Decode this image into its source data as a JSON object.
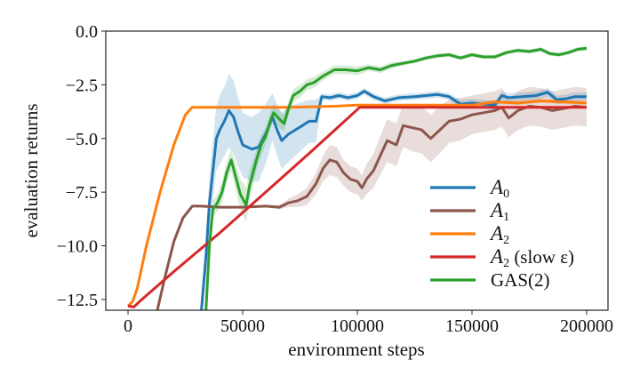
{
  "chart_data": {
    "type": "line",
    "title": "",
    "xlabel": "environment steps",
    "ylabel": "evaluation returns",
    "xlim": [
      -9700,
      209300
    ],
    "ylim": [
      -13.0,
      0.0
    ],
    "xticks": [
      0,
      50000,
      100000,
      150000,
      200000
    ],
    "xtick_labels": [
      "0",
      "50000",
      "100000",
      "150000",
      "200000"
    ],
    "yticks": [
      0.0,
      -2.5,
      -5.0,
      -7.5,
      -10.0,
      -12.5
    ],
    "ytick_labels": [
      "0.0",
      "−2.5",
      "−5.0",
      "−7.5",
      "−10.0",
      "−12.5"
    ],
    "grid": false,
    "legend_position": "lower-right",
    "series": [
      {
        "name": "A_0",
        "color": "#1f77b4",
        "x": [
          32000,
          34000,
          35500,
          37000,
          38500,
          40000,
          42000,
          44000,
          46000,
          48000,
          50000,
          52000,
          54000,
          57000,
          60000,
          63000,
          65000,
          67000,
          70000,
          73000,
          76000,
          79000,
          82000,
          84500,
          88000,
          92000,
          96000,
          100000,
          103000,
          107000,
          112000,
          118000,
          125000,
          130000,
          135000,
          140000,
          145000,
          150000,
          155000,
          160000,
          163000,
          166000,
          172000,
          178000,
          183000,
          187000,
          191000,
          195000,
          200000
        ],
        "y": [
          -13.0,
          -10.5,
          -8.0,
          -6.5,
          -5.0,
          -4.6,
          -4.2,
          -3.7,
          -4.0,
          -4.7,
          -5.3,
          -5.4,
          -5.5,
          -5.4,
          -4.8,
          -4.0,
          -4.6,
          -5.1,
          -4.8,
          -4.6,
          -4.4,
          -4.2,
          -4.2,
          -3.05,
          -3.1,
          -3.0,
          -3.1,
          -3.0,
          -2.8,
          -3.05,
          -3.25,
          -3.1,
          -3.05,
          -3.0,
          -2.95,
          -3.05,
          -3.4,
          -3.35,
          -3.4,
          -3.45,
          -3.0,
          -3.1,
          -3.05,
          -3.0,
          -2.85,
          -3.2,
          -3.15,
          -3.05,
          -3.05
        ],
        "band": [
          0.1,
          0.8,
          1.2,
          1.4,
          1.5,
          1.6,
          1.6,
          1.7,
          1.7,
          1.6,
          1.5,
          1.5,
          1.5,
          1.6,
          1.4,
          1.1,
          1.2,
          1.3,
          1.3,
          1.2,
          1.1,
          1.0,
          1.0,
          0.15,
          0.15,
          0.15,
          0.15,
          0.15,
          0.15,
          0.15,
          0.15,
          0.15,
          0.15,
          0.15,
          0.15,
          0.15,
          0.2,
          0.2,
          0.2,
          0.2,
          0.2,
          0.2,
          0.2,
          0.2,
          0.2,
          0.2,
          0.2,
          0.2,
          0.2
        ]
      },
      {
        "name": "A_1",
        "color": "#8c564b",
        "x": [
          12800,
          16000,
          20000,
          24000,
          28000,
          32000,
          40000,
          50000,
          60000,
          66000,
          70000,
          74000,
          78000,
          82000,
          85000,
          88000,
          91000,
          94000,
          97000,
          100000,
          102000,
          104000,
          107000,
          110000,
          113000,
          117000,
          120000,
          124000,
          128000,
          132000,
          136000,
          140000,
          145000,
          150000,
          155000,
          160000,
          163000,
          166000,
          170000,
          175000,
          180000,
          185000,
          190000,
          195000,
          200000
        ],
        "y": [
          -13.0,
          -11.5,
          -9.8,
          -8.7,
          -8.15,
          -8.15,
          -8.2,
          -8.2,
          -8.15,
          -8.2,
          -8.0,
          -7.9,
          -7.7,
          -7.1,
          -6.4,
          -6.0,
          -6.1,
          -6.6,
          -6.9,
          -7.0,
          -7.3,
          -6.9,
          -6.5,
          -5.8,
          -5.1,
          -5.3,
          -4.4,
          -4.5,
          -4.6,
          -5.0,
          -4.6,
          -4.2,
          -4.1,
          -3.9,
          -3.8,
          -3.7,
          -3.55,
          -4.05,
          -3.7,
          -3.5,
          -3.55,
          -3.7,
          -3.6,
          -3.5,
          -3.55
        ],
        "band": [
          0.05,
          0.05,
          0.05,
          0.05,
          0.05,
          0.05,
          0.05,
          0.05,
          0.05,
          0.1,
          0.2,
          0.3,
          0.4,
          0.5,
          0.6,
          0.7,
          0.7,
          0.6,
          0.6,
          0.6,
          0.6,
          0.7,
          0.8,
          0.9,
          1.0,
          1.0,
          1.0,
          1.1,
          1.1,
          1.1,
          1.1,
          1.0,
          1.0,
          0.9,
          0.9,
          0.9,
          0.9,
          0.9,
          0.9,
          0.9,
          0.9,
          0.9,
          0.9,
          0.9,
          0.9
        ]
      },
      {
        "name": "A_2",
        "color": "#ff7f0e",
        "x": [
          0,
          2000,
          4000,
          8000,
          14000,
          20000,
          25000,
          28000,
          30000,
          50000,
          70000,
          90000,
          100000,
          110000,
          120000,
          140000,
          150000,
          160000,
          170000,
          180000,
          190000,
          200000
        ],
        "y": [
          -12.8,
          -12.6,
          -12.0,
          -10.0,
          -7.5,
          -5.3,
          -3.9,
          -3.55,
          -3.55,
          -3.55,
          -3.55,
          -3.5,
          -3.45,
          -3.45,
          -3.45,
          -3.45,
          -3.45,
          -3.3,
          -3.35,
          -3.25,
          -3.3,
          -3.35
        ],
        "band": [
          0,
          0,
          0,
          0,
          0,
          0,
          0,
          0,
          0,
          0,
          0,
          0,
          0.05,
          0.05,
          0.05,
          0.05,
          0.1,
          0.1,
          0.1,
          0.1,
          0.1,
          0.1
        ]
      },
      {
        "name": "A_2 (slow ε)",
        "color": "#d62728",
        "x": [
          0,
          2500,
          5000,
          20000,
          40000,
          60000,
          80000,
          100000,
          101000,
          120000,
          150000,
          170000,
          200000
        ],
        "y": [
          -12.8,
          -12.85,
          -12.6,
          -11.2,
          -9.4,
          -7.5,
          -5.6,
          -3.65,
          -3.55,
          -3.55,
          -3.55,
          -3.55,
          -3.55
        ],
        "band": [
          0,
          0,
          0,
          0,
          0,
          0,
          0,
          0,
          0,
          0,
          0,
          0,
          0
        ]
      },
      {
        "name": "GAS(2)",
        "color": "#2ca02c",
        "x": [
          34000,
          35500,
          37000,
          39000,
          41000,
          43000,
          45000,
          47000,
          49000,
          51500,
          53000,
          56000,
          58000,
          60000,
          62000,
          63500,
          66000,
          68000,
          70000,
          72000,
          75000,
          78000,
          81000,
          85000,
          90000,
          95000,
          100000,
          105000,
          110000,
          115000,
          120000,
          125000,
          130000,
          135000,
          140000,
          145000,
          150000,
          155000,
          160000,
          165000,
          170000,
          175000,
          180000,
          184000,
          188000,
          192000,
          196000,
          200000
        ],
        "y": [
          -13.0,
          -10.0,
          -8.3,
          -8.0,
          -7.5,
          -6.6,
          -6.0,
          -6.8,
          -7.6,
          -8.1,
          -7.2,
          -6.0,
          -5.3,
          -4.9,
          -4.2,
          -3.8,
          -4.1,
          -4.3,
          -3.6,
          -3.0,
          -2.8,
          -2.5,
          -2.4,
          -2.1,
          -1.8,
          -1.8,
          -1.85,
          -1.7,
          -1.8,
          -1.6,
          -1.5,
          -1.4,
          -1.25,
          -1.15,
          -1.1,
          -1.25,
          -1.1,
          -1.2,
          -1.2,
          -1.0,
          -0.9,
          -0.95,
          -0.85,
          -1.05,
          -1.1,
          -1.0,
          -0.85,
          -0.8
        ],
        "band": [
          0.1,
          0.3,
          0.4,
          0.4,
          0.5,
          0.5,
          0.5,
          0.6,
          0.7,
          0.8,
          0.7,
          0.5,
          0.5,
          0.4,
          0.4,
          0.4,
          0.4,
          0.4,
          0.35,
          0.3,
          0.3,
          0.25,
          0.25,
          0.2,
          0.2,
          0.2,
          0.2,
          0.15,
          0.15,
          0.15,
          0.1,
          0.1,
          0.1,
          0.1,
          0.1,
          0.1,
          0.1,
          0.1,
          0.1,
          0.1,
          0.1,
          0.1,
          0.1,
          0.1,
          0.1,
          0.1,
          0.1,
          0.1
        ]
      }
    ]
  }
}
